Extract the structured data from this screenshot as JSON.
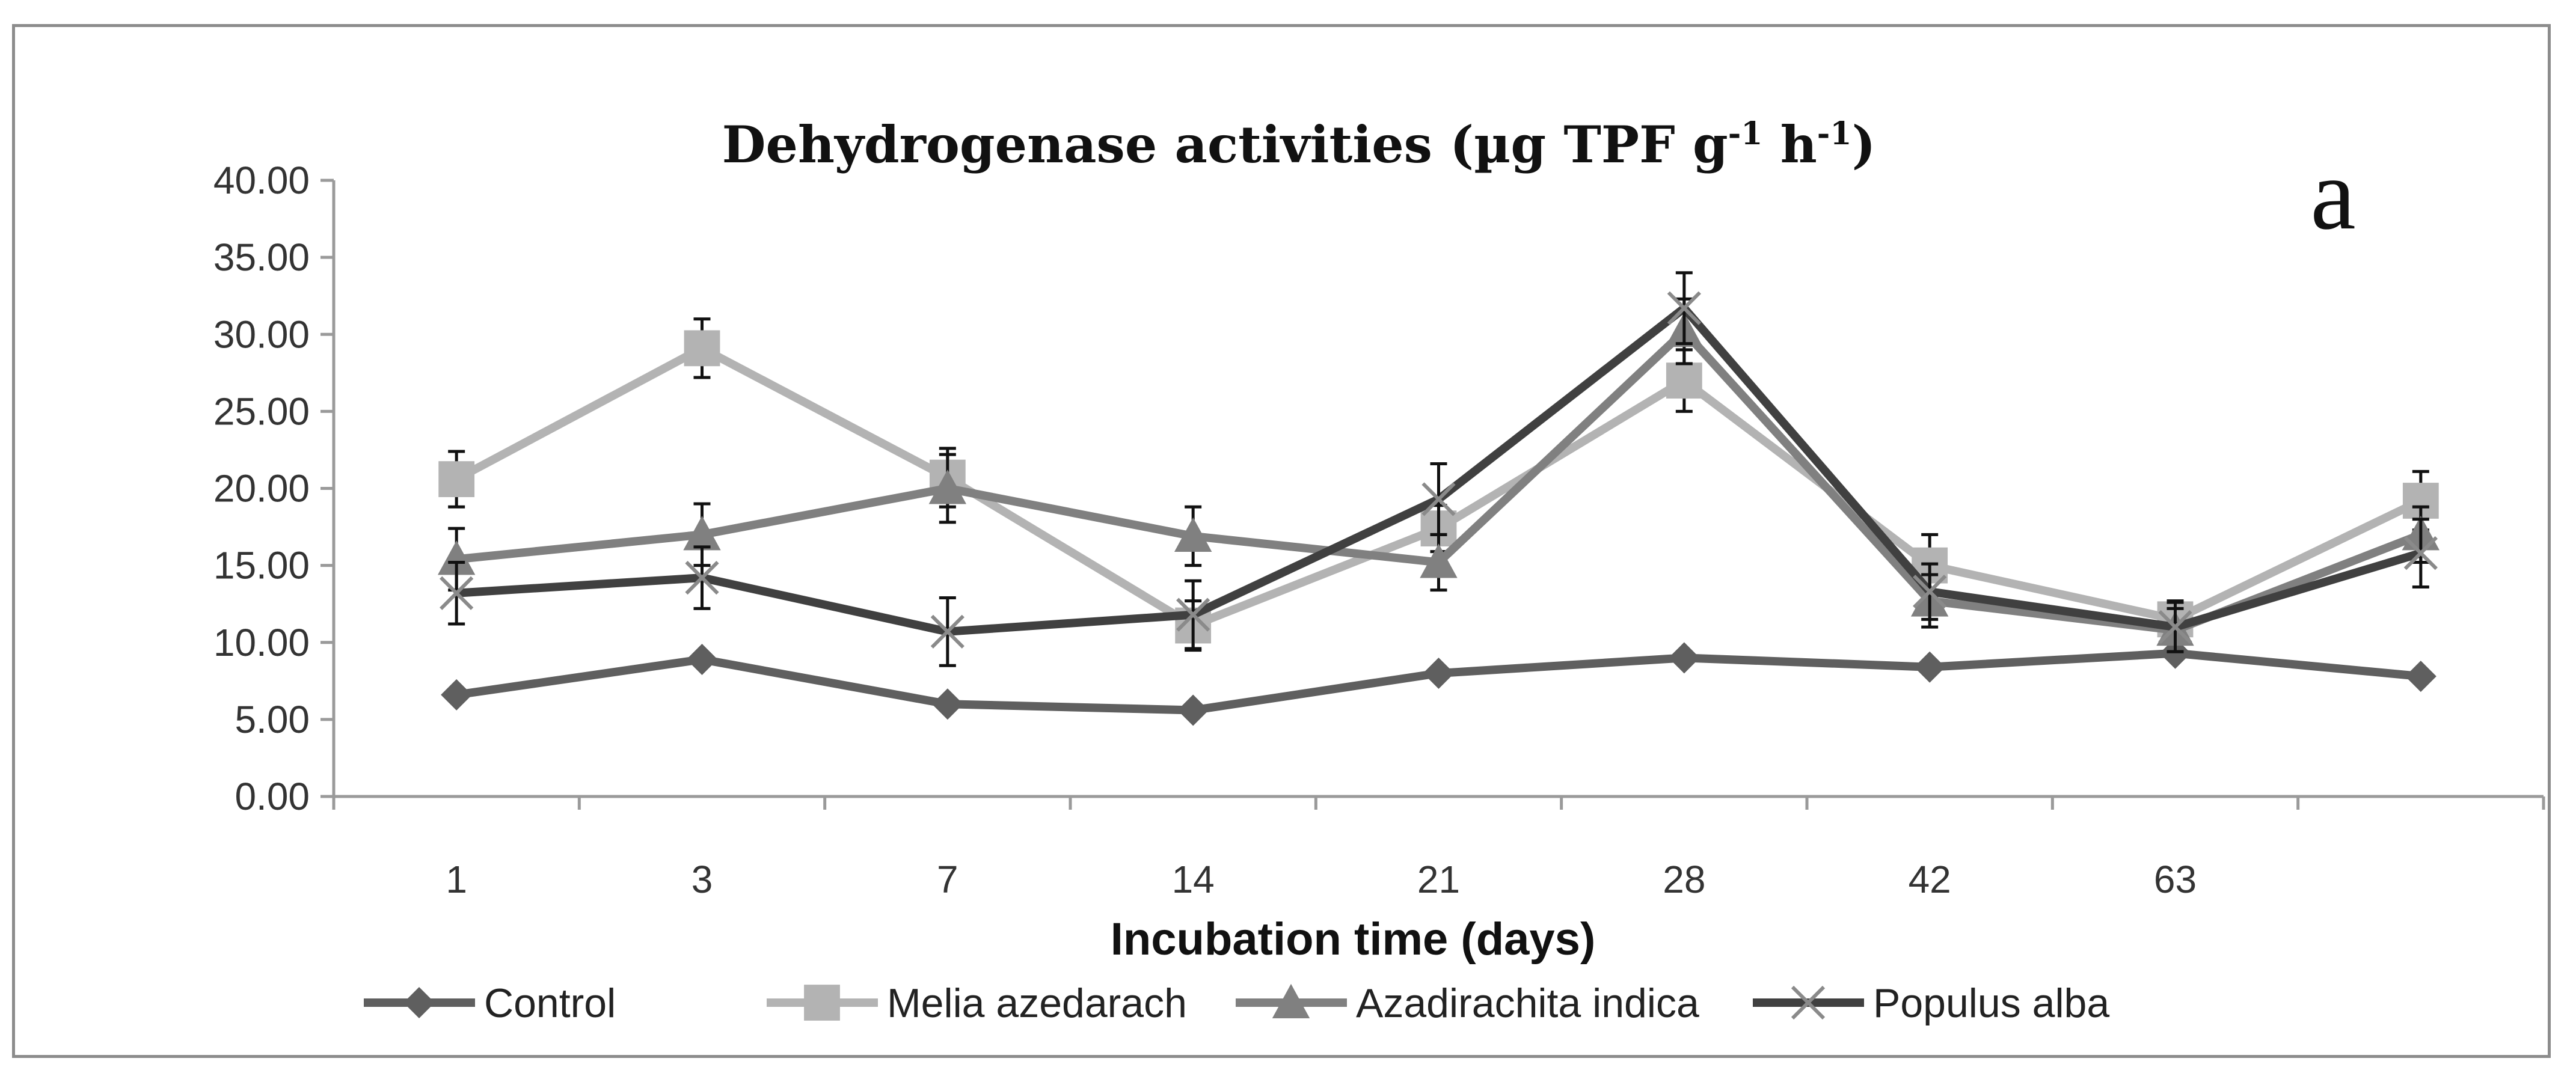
{
  "chart_data": {
    "type": "line",
    "title": "Dehydrogenase activities (µg TPF g",
    "title_sup1": "-1",
    "title_mid": " h",
    "title_sup2": "-1",
    "title_end": ")",
    "panel_label": "a",
    "xlabel": "Incubation time (days)",
    "ylabel": "",
    "ylim": [
      0,
      40
    ],
    "ytick_step": 5,
    "categories": [
      "1",
      "3",
      "7",
      "14",
      "21",
      "28",
      "42",
      "63",
      ""
    ],
    "series": [
      {
        "name": "Control",
        "marker": "diamond",
        "color": "#5f5f5f",
        "values": [
          6.6,
          8.9,
          6.0,
          5.6,
          8.0,
          9.0,
          8.4,
          9.3,
          7.8
        ],
        "errors": [
          0,
          0,
          0,
          0,
          0,
          0,
          0,
          0,
          0
        ]
      },
      {
        "name": "Melia azedarach",
        "marker": "square",
        "color": "#b3b3b3",
        "values": [
          20.6,
          29.1,
          20.7,
          11.1,
          17.4,
          27.0,
          15.0,
          11.5,
          19.2
        ],
        "errors": [
          1.8,
          1.9,
          1.9,
          1.6,
          1.5,
          2.0,
          2.0,
          1.2,
          1.9
        ]
      },
      {
        "name": "Azadirachita indica",
        "marker": "triangle",
        "color": "#808080",
        "values": [
          15.4,
          17.0,
          20.0,
          16.9,
          15.2,
          30.2,
          12.7,
          10.8,
          17.0
        ],
        "errors": [
          2.0,
          2.0,
          2.2,
          1.9,
          1.8,
          2.1,
          1.7,
          1.4,
          1.8
        ]
      },
      {
        "name": "Populus alba",
        "marker": "x",
        "color": "#404040",
        "values": [
          13.2,
          14.2,
          10.7,
          11.8,
          19.3,
          31.7,
          13.3,
          11.0,
          15.8
        ],
        "errors": [
          2.0,
          2.0,
          2.2,
          2.2,
          2.3,
          2.3,
          1.8,
          1.6,
          2.2
        ]
      }
    ]
  }
}
